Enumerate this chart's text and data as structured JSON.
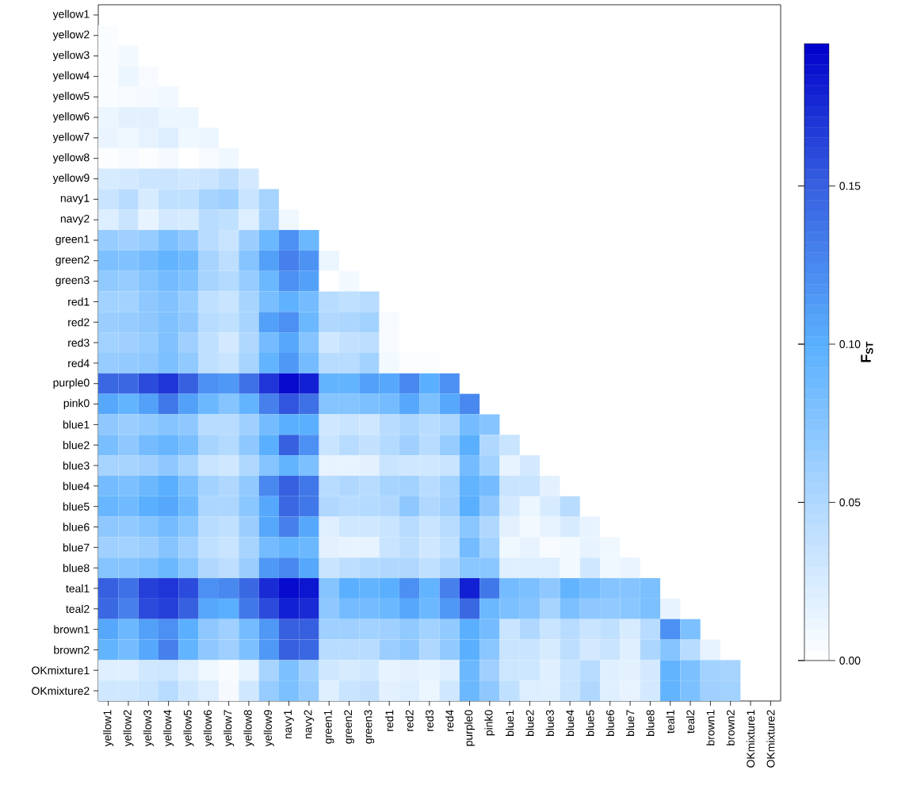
{
  "chart_data": {
    "type": "heatmap",
    "categories": [
      "yellow1",
      "yellow2",
      "yellow3",
      "yellow4",
      "yellow5",
      "yellow6",
      "yellow7",
      "yellow8",
      "yellow9",
      "navy1",
      "navy2",
      "green1",
      "green2",
      "green3",
      "red1",
      "red2",
      "red3",
      "red4",
      "purple0",
      "pink0",
      "blue1",
      "blue2",
      "blue3",
      "blue4",
      "blue5",
      "blue6",
      "blue7",
      "blue8",
      "teal1",
      "teal2",
      "brown1",
      "brown2",
      "OKmixture1",
      "OKmixture2"
    ],
    "y_categories": [
      "yellow1",
      "yellow2",
      "yellow3",
      "yellow4",
      "yellow5",
      "yellow6",
      "yellow7",
      "yellow8",
      "yellow9",
      "navy1",
      "navy2",
      "green1",
      "green2",
      "green3",
      "red1",
      "red2",
      "red3",
      "red4",
      "purple0",
      "pink0",
      "blue1",
      "blue2",
      "blue3",
      "blue4",
      "blue5",
      "blue6",
      "blue7",
      "blue8",
      "teal1",
      "teal2",
      "brown1",
      "brown2",
      "OKmixture1",
      "OKmixture2"
    ],
    "cells": [
      [
        null,
        null,
        null,
        null,
        null,
        null,
        null,
        null,
        null,
        null,
        null,
        null,
        null,
        null,
        null,
        null,
        null,
        null,
        null,
        null,
        null,
        null,
        null,
        null,
        null,
        null,
        null,
        null,
        null,
        null,
        null,
        null,
        null,
        null
      ],
      [
        0.003,
        null,
        null,
        null,
        null,
        null,
        null,
        null,
        null,
        null,
        null,
        null,
        null,
        null,
        null,
        null,
        null,
        null,
        null,
        null,
        null,
        null,
        null,
        null,
        null,
        null,
        null,
        null,
        null,
        null,
        null,
        null,
        null,
        null
      ],
      [
        0.003,
        0.008,
        null,
        null,
        null,
        null,
        null,
        null,
        null,
        null,
        null,
        null,
        null,
        null,
        null,
        null,
        null,
        null,
        null,
        null,
        null,
        null,
        null,
        null,
        null,
        null,
        null,
        null,
        null,
        null,
        null,
        null,
        null,
        null
      ],
      [
        0.003,
        0.012,
        0.005,
        null,
        null,
        null,
        null,
        null,
        null,
        null,
        null,
        null,
        null,
        null,
        null,
        null,
        null,
        null,
        null,
        null,
        null,
        null,
        null,
        null,
        null,
        null,
        null,
        null,
        null,
        null,
        null,
        null,
        null,
        null
      ],
      [
        0.003,
        0.005,
        0.007,
        0.009,
        null,
        null,
        null,
        null,
        null,
        null,
        null,
        null,
        null,
        null,
        null,
        null,
        null,
        null,
        null,
        null,
        null,
        null,
        null,
        null,
        null,
        null,
        null,
        null,
        null,
        null,
        null,
        null,
        null,
        null
      ],
      [
        0.012,
        0.018,
        0.018,
        0.012,
        0.012,
        null,
        null,
        null,
        null,
        null,
        null,
        null,
        null,
        null,
        null,
        null,
        null,
        null,
        null,
        null,
        null,
        null,
        null,
        null,
        null,
        null,
        null,
        null,
        null,
        null,
        null,
        null,
        null,
        null
      ],
      [
        0.014,
        0.01,
        0.016,
        0.022,
        0.01,
        0.012,
        null,
        null,
        null,
        null,
        null,
        null,
        null,
        null,
        null,
        null,
        null,
        null,
        null,
        null,
        null,
        null,
        null,
        null,
        null,
        null,
        null,
        null,
        null,
        null,
        null,
        null,
        null,
        null
      ],
      [
        0.002,
        0.005,
        0.002,
        0.007,
        0,
        0.005,
        0.01,
        null,
        null,
        null,
        null,
        null,
        null,
        null,
        null,
        null,
        null,
        null,
        null,
        null,
        null,
        null,
        null,
        null,
        null,
        null,
        null,
        null,
        null,
        null,
        null,
        null,
        null,
        null
      ],
      [
        0.025,
        0.028,
        0.033,
        0.033,
        0.03,
        0.033,
        0.042,
        0.028,
        null,
        null,
        null,
        null,
        null,
        null,
        null,
        null,
        null,
        null,
        null,
        null,
        null,
        null,
        null,
        null,
        null,
        null,
        null,
        null,
        null,
        null,
        null,
        null,
        null,
        null
      ],
      [
        0.035,
        0.045,
        0.025,
        0.04,
        0.04,
        0.055,
        0.06,
        0.035,
        0.055,
        null,
        null,
        null,
        null,
        null,
        null,
        null,
        null,
        null,
        null,
        null,
        null,
        null,
        null,
        null,
        null,
        null,
        null,
        null,
        null,
        null,
        null,
        null,
        null,
        null
      ],
      [
        0.022,
        0.035,
        0.015,
        0.028,
        0.025,
        0.045,
        0.04,
        0.022,
        0.055,
        0.01,
        null,
        null,
        null,
        null,
        null,
        null,
        null,
        null,
        null,
        null,
        null,
        null,
        null,
        null,
        null,
        null,
        null,
        null,
        null,
        null,
        null,
        null,
        null,
        null
      ],
      [
        0.065,
        0.06,
        0.065,
        0.08,
        0.07,
        0.045,
        0.035,
        0.062,
        0.09,
        0.12,
        0.09,
        null,
        null,
        null,
        null,
        null,
        null,
        null,
        null,
        null,
        null,
        null,
        null,
        null,
        null,
        null,
        null,
        null,
        null,
        null,
        null,
        null,
        null,
        null
      ],
      [
        0.08,
        0.078,
        0.085,
        0.095,
        0.088,
        0.055,
        0.042,
        0.075,
        0.11,
        0.13,
        0.118,
        0.012,
        null,
        null,
        null,
        null,
        null,
        null,
        null,
        null,
        null,
        null,
        null,
        null,
        null,
        null,
        null,
        null,
        null,
        null,
        null,
        null,
        null,
        null
      ],
      [
        0.068,
        0.065,
        0.075,
        0.085,
        0.078,
        0.055,
        0.048,
        0.065,
        0.09,
        0.12,
        0.11,
        0,
        0.008,
        null,
        null,
        null,
        null,
        null,
        null,
        null,
        null,
        null,
        null,
        null,
        null,
        null,
        null,
        null,
        null,
        null,
        null,
        null,
        null,
        null
      ],
      [
        0.058,
        0.058,
        0.07,
        0.077,
        0.065,
        0.04,
        0.035,
        0.055,
        0.082,
        0.097,
        0.085,
        0.045,
        0.04,
        0.045,
        null,
        null,
        null,
        null,
        null,
        null,
        null,
        null,
        null,
        null,
        null,
        null,
        null,
        null,
        null,
        null,
        null,
        null,
        null,
        null
      ],
      [
        0.062,
        0.065,
        0.07,
        0.078,
        0.07,
        0.045,
        0.04,
        0.055,
        0.11,
        0.12,
        0.09,
        0.05,
        0.052,
        0.058,
        0.005,
        null,
        null,
        null,
        null,
        null,
        null,
        null,
        null,
        null,
        null,
        null,
        null,
        null,
        null,
        null,
        null,
        null,
        null,
        null
      ],
      [
        0.058,
        0.06,
        0.065,
        0.078,
        0.06,
        0.04,
        0.028,
        0.05,
        0.085,
        0.105,
        0.075,
        0.03,
        0.038,
        0.042,
        0.005,
        0,
        null,
        null,
        null,
        null,
        null,
        null,
        null,
        null,
        null,
        null,
        null,
        null,
        null,
        null,
        null,
        null,
        null,
        null
      ],
      [
        0.065,
        0.067,
        0.07,
        0.08,
        0.068,
        0.04,
        0.035,
        0.055,
        0.095,
        0.115,
        0.085,
        0.045,
        0.045,
        0.058,
        0.008,
        0.002,
        0.002,
        null,
        null,
        null,
        null,
        null,
        null,
        null,
        null,
        null,
        null,
        null,
        null,
        null,
        null,
        null,
        null,
        null
      ],
      [
        0.145,
        0.145,
        0.16,
        0.17,
        0.15,
        0.12,
        0.115,
        0.14,
        0.17,
        0.19,
        0.18,
        0.095,
        0.095,
        0.11,
        0.105,
        0.125,
        0.1,
        0.12,
        null,
        null,
        null,
        null,
        null,
        null,
        null,
        null,
        null,
        null,
        null,
        null,
        null,
        null,
        null,
        null
      ],
      [
        0.105,
        0.095,
        0.11,
        0.135,
        0.11,
        0.09,
        0.075,
        0.095,
        0.13,
        0.155,
        0.14,
        0.075,
        0.075,
        0.08,
        0.085,
        0.105,
        0.08,
        0.105,
        0.125,
        null,
        null,
        null,
        null,
        null,
        null,
        null,
        null,
        null,
        null,
        null,
        null,
        null,
        null,
        null
      ],
      [
        0.07,
        0.062,
        0.068,
        0.075,
        0.07,
        0.045,
        0.045,
        0.06,
        0.085,
        0.1,
        0.1,
        0.03,
        0.035,
        0.03,
        0.045,
        0.052,
        0.045,
        0.052,
        0.085,
        0.075,
        null,
        null,
        null,
        null,
        null,
        null,
        null,
        null,
        null,
        null,
        null,
        null,
        null,
        null
      ],
      [
        0.082,
        0.07,
        0.085,
        0.092,
        0.082,
        0.055,
        0.048,
        0.07,
        0.1,
        0.15,
        0.12,
        0.035,
        0.045,
        0.038,
        0.048,
        0.06,
        0.045,
        0.065,
        0.1,
        0.05,
        0.035,
        null,
        null,
        null,
        null,
        null,
        null,
        null,
        null,
        null,
        null,
        null,
        null,
        null
      ],
      [
        0.055,
        0.055,
        0.06,
        0.07,
        0.055,
        0.035,
        0.03,
        0.05,
        0.075,
        0.095,
        0.08,
        0.015,
        0.015,
        0.018,
        0.035,
        0.03,
        0.03,
        0.035,
        0.085,
        0.058,
        0.015,
        0.028,
        null,
        null,
        null,
        null,
        null,
        null,
        null,
        null,
        null,
        null,
        null,
        null
      ],
      [
        0.085,
        0.08,
        0.09,
        0.1,
        0.08,
        0.058,
        0.05,
        0.068,
        0.125,
        0.15,
        0.135,
        0.045,
        0.05,
        0.045,
        0.055,
        0.058,
        0.045,
        0.058,
        0.095,
        0.085,
        0.035,
        0.035,
        0.018,
        null,
        null,
        null,
        null,
        null,
        null,
        null,
        null,
        null,
        null,
        null
      ],
      [
        0.092,
        0.087,
        0.1,
        0.105,
        0.088,
        0.052,
        0.052,
        0.072,
        0.105,
        0.145,
        0.135,
        0.05,
        0.045,
        0.048,
        0.05,
        0.07,
        0.05,
        0.06,
        0.1,
        0.07,
        0.028,
        0.012,
        0.025,
        0.045,
        null,
        null,
        null,
        null,
        null,
        null,
        null,
        null,
        null,
        null
      ],
      [
        0.07,
        0.068,
        0.075,
        0.085,
        0.072,
        0.045,
        0.04,
        0.062,
        0.105,
        0.13,
        0.105,
        0.02,
        0.03,
        0.03,
        0.035,
        0.045,
        0.035,
        0.045,
        0.072,
        0.05,
        0.018,
        0.008,
        0.015,
        0.025,
        0.015,
        null,
        null,
        null,
        null,
        null,
        null,
        null,
        null,
        null
      ],
      [
        0.06,
        0.058,
        0.062,
        0.075,
        0.06,
        0.04,
        0.035,
        0.055,
        0.085,
        0.095,
        0.09,
        0.018,
        0.015,
        0.015,
        0.035,
        0.042,
        0.03,
        0.04,
        0.085,
        0.058,
        0.01,
        0.015,
        0.005,
        0.008,
        0.015,
        0.01,
        null,
        null,
        null,
        null,
        null,
        null,
        null,
        null
      ],
      [
        0.075,
        0.075,
        0.08,
        0.09,
        0.072,
        0.05,
        0.042,
        0.062,
        0.115,
        0.125,
        0.105,
        0.035,
        0.042,
        0.048,
        0.05,
        0.05,
        0.04,
        0.052,
        0.072,
        0.072,
        0.02,
        0.022,
        0.022,
        0.008,
        0.03,
        0.01,
        0.014,
        null,
        null,
        null,
        null,
        null,
        null,
        null
      ],
      [
        0.15,
        0.14,
        0.165,
        0.17,
        0.16,
        0.12,
        0.125,
        0.145,
        0.175,
        0.19,
        0.185,
        0.075,
        0.1,
        0.095,
        0.1,
        0.12,
        0.095,
        0.13,
        0.18,
        0.135,
        0.085,
        0.08,
        0.07,
        0.095,
        0.085,
        0.075,
        0.075,
        0.08,
        null,
        null,
        null,
        null,
        null,
        null
      ],
      [
        0.145,
        0.13,
        0.16,
        0.165,
        0.15,
        0.105,
        0.1,
        0.135,
        0.16,
        0.18,
        0.175,
        0.07,
        0.085,
        0.085,
        0.09,
        0.105,
        0.09,
        0.115,
        0.145,
        0.09,
        0.08,
        0.075,
        0.055,
        0.08,
        0.07,
        0.068,
        0.072,
        0.08,
        0.015,
        null,
        null,
        null,
        null,
        null
      ],
      [
        0.105,
        0.09,
        0.11,
        0.12,
        0.1,
        0.07,
        0.06,
        0.085,
        0.115,
        0.15,
        0.15,
        0.06,
        0.06,
        0.058,
        0.06,
        0.068,
        0.058,
        0.068,
        0.1,
        0.085,
        0.035,
        0.05,
        0.035,
        0.045,
        0.035,
        0.04,
        0.025,
        0.045,
        0.12,
        0.08,
        null,
        null,
        null,
        null
      ],
      [
        0.095,
        0.085,
        0.105,
        0.13,
        0.095,
        0.07,
        0.06,
        0.08,
        0.115,
        0.15,
        0.145,
        0.045,
        0.045,
        0.045,
        0.062,
        0.07,
        0.05,
        0.068,
        0.1,
        0.072,
        0.035,
        0.035,
        0.025,
        0.042,
        0.028,
        0.035,
        0.02,
        0.052,
        0.075,
        0.045,
        0.015,
        null,
        null,
        null
      ],
      [
        0.02,
        0.02,
        0.03,
        0.032,
        0.022,
        0.01,
        0.004,
        0.015,
        0.055,
        0.08,
        0.06,
        0.03,
        0.025,
        0.03,
        0.015,
        0.018,
        0.015,
        0.02,
        0.09,
        0.06,
        0.032,
        0.032,
        0.02,
        0.035,
        0.045,
        0.02,
        0.018,
        0.028,
        0.095,
        0.08,
        0.058,
        0.055,
        null,
        null
      ],
      [
        0.03,
        0.03,
        0.035,
        0.045,
        0.03,
        0.022,
        0.006,
        0.03,
        0.065,
        0.08,
        0.065,
        0.02,
        0.035,
        0.038,
        0.018,
        0.022,
        0.012,
        0.03,
        0.09,
        0.07,
        0.04,
        0.022,
        0.02,
        0.035,
        0.05,
        0.02,
        0.015,
        0.028,
        0.095,
        0.08,
        0.06,
        0.058,
        null,
        null
      ]
    ],
    "clim": [
      0,
      0.195
    ],
    "cticks": [
      {
        "value": 0,
        "label": "0.00"
      },
      {
        "value": 0.05,
        "label": "0.05"
      },
      {
        "value": 0.1,
        "label": "0.10"
      },
      {
        "value": 0.15,
        "label": "0.15"
      }
    ],
    "clabel": "F$_{ST}$"
  }
}
